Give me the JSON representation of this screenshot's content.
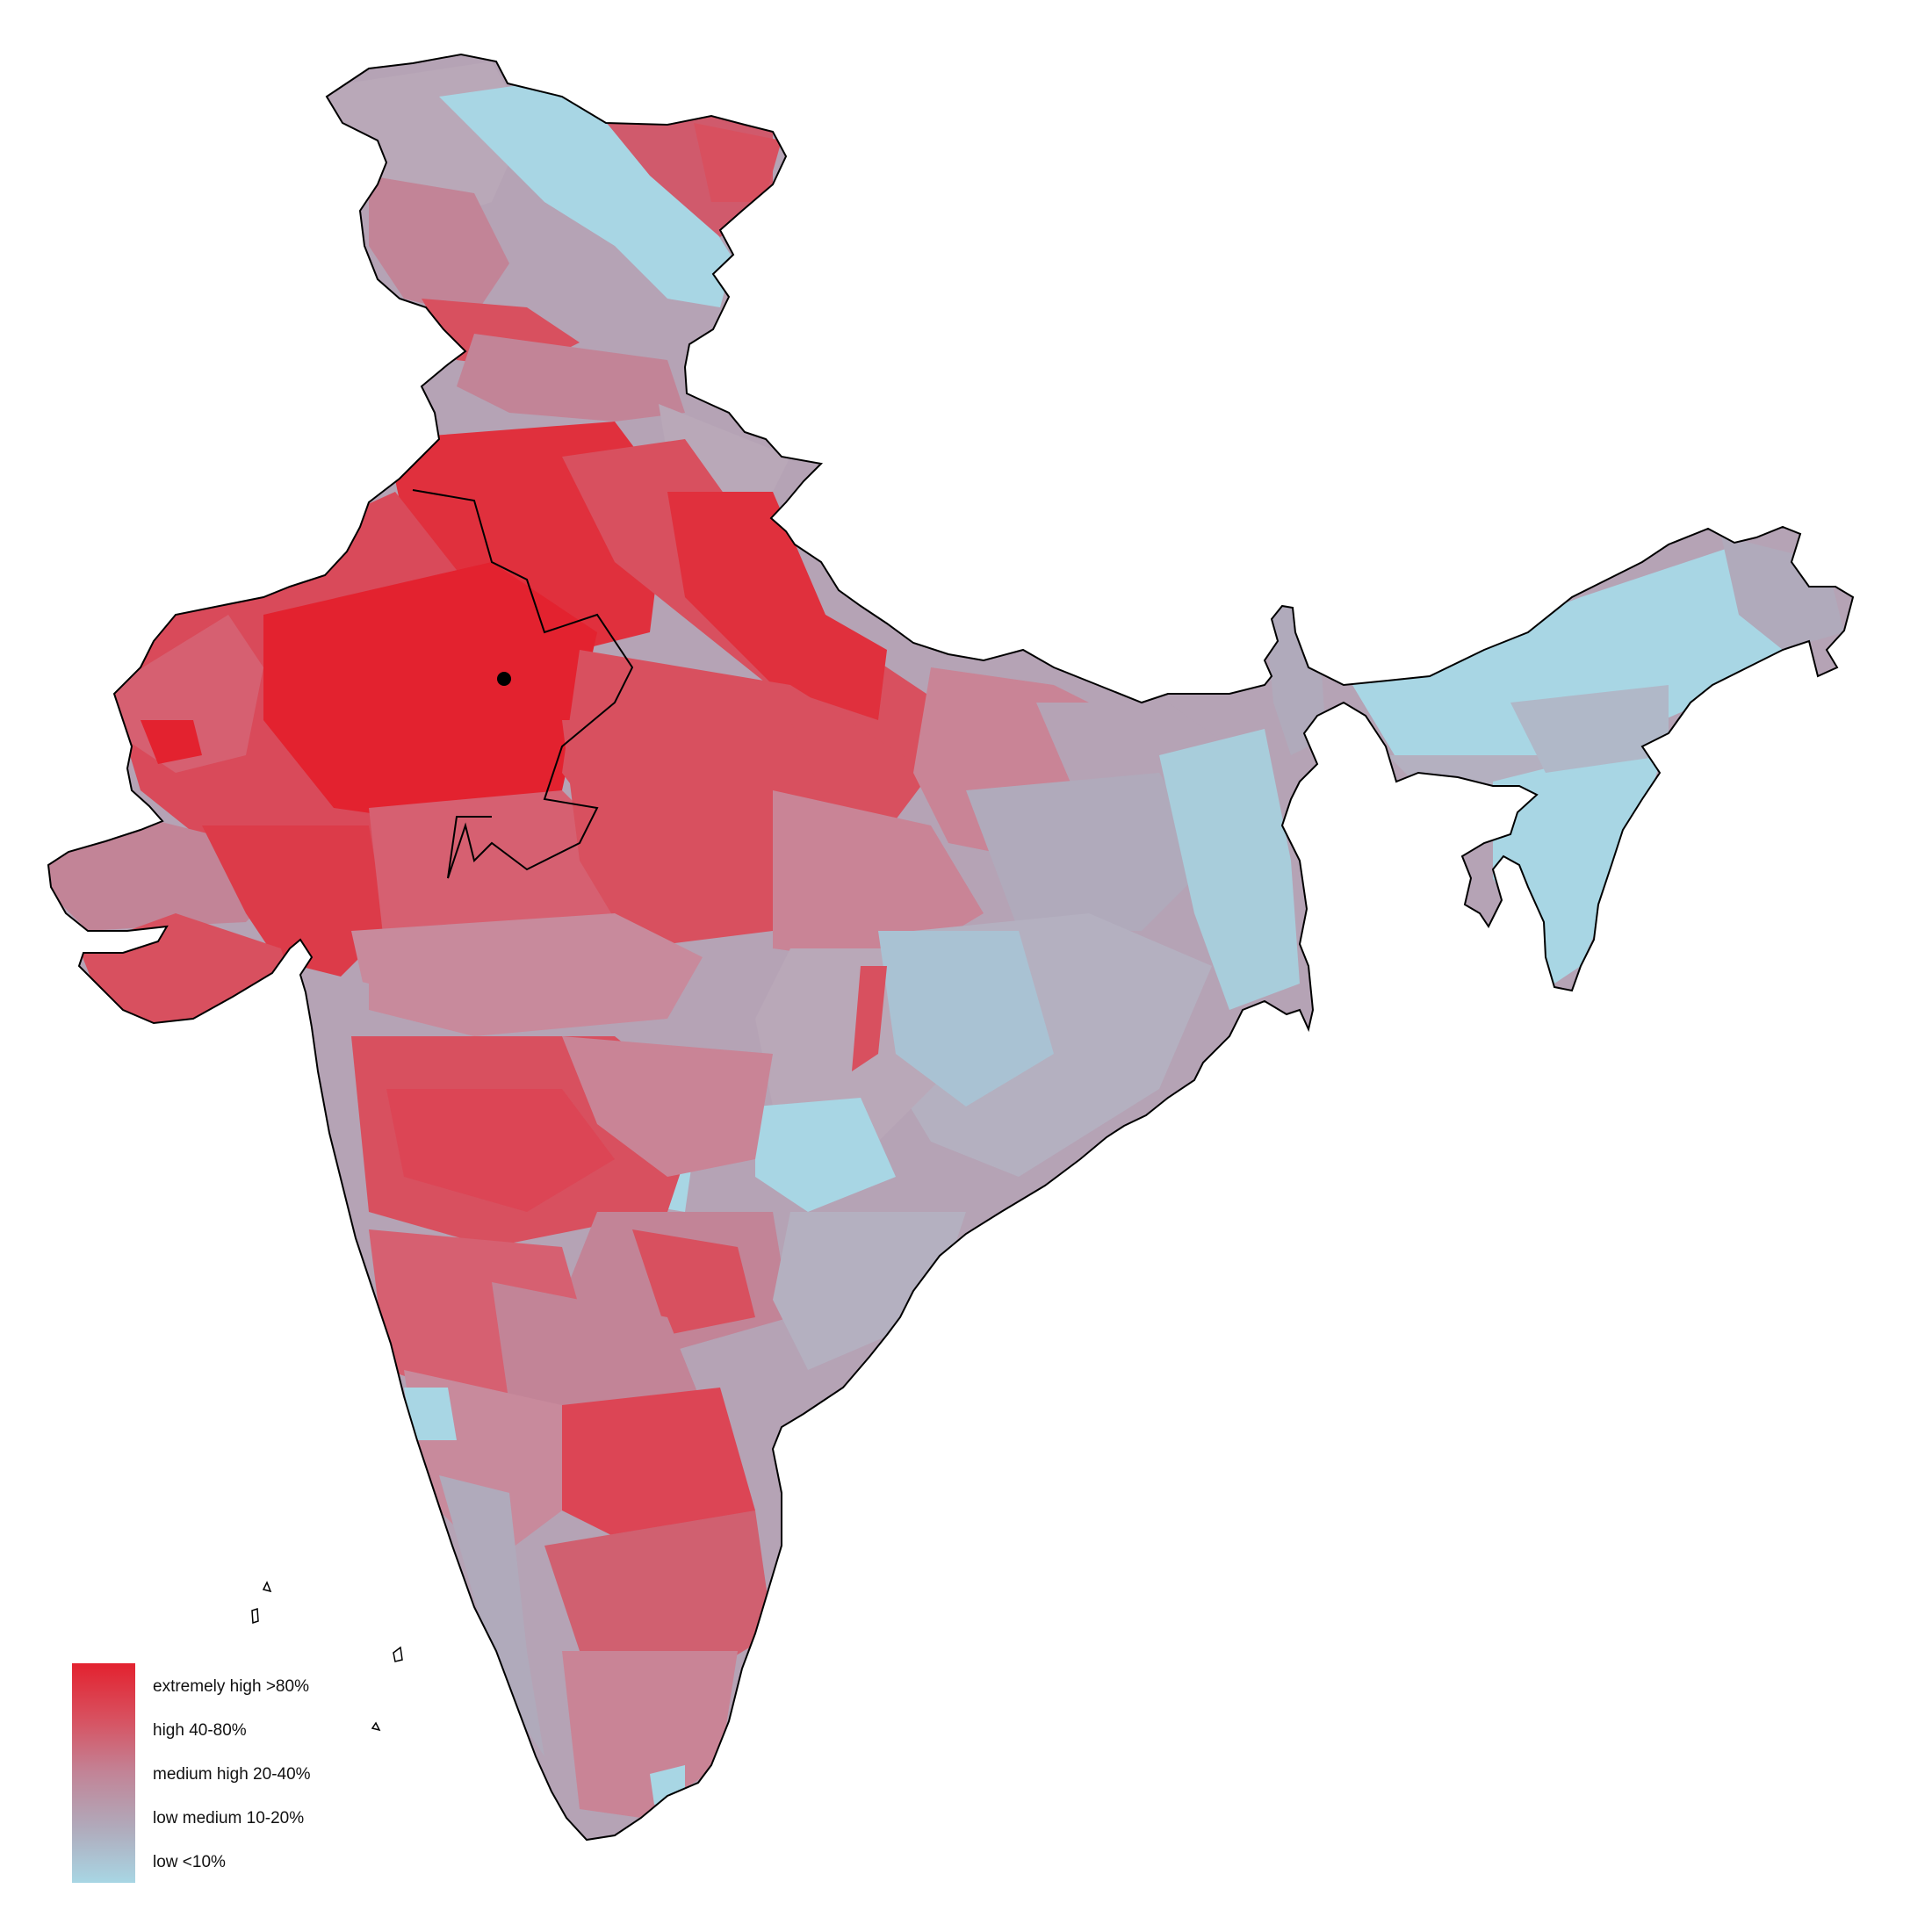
{
  "map": {
    "colors": {
      "extremely_high": "#e3222f",
      "high": "#d8505f",
      "medium_high": "#c28497",
      "low_medium": "#b0aabb",
      "low": "#a8d6e4",
      "border": "#000000"
    }
  },
  "legend": {
    "items": [
      {
        "label": "extremely high >80%",
        "color": "#e3222f"
      },
      {
        "label": "high 40-80%",
        "color": "#d8505f"
      },
      {
        "label": "medium high 20-40%",
        "color": "#c28497"
      },
      {
        "label": "low medium 10-20%",
        "color": "#b0aabb"
      },
      {
        "label": "low <10%",
        "color": "#a8d6e4"
      }
    ]
  }
}
